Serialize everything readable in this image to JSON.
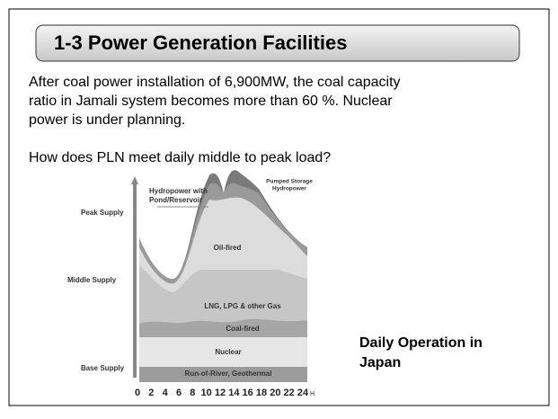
{
  "header": {
    "title": "1-3 Power Generation Facilities"
  },
  "paragraphs": [
    "After coal power installation of 6,900MW, the coal capacity",
    "ratio in Jamali system becomes more than 60 %. Nuclear",
    "power is under planning."
  ],
  "question": "How does PLN meet daily middle to peak load?",
  "figure": {
    "supply_levels": [
      "Peak Supply",
      "Middle Supply",
      "Base Supply"
    ],
    "layers": [
      "Oil-fired",
      "LNG, LPG & other Gas",
      "Coal-fired",
      "Nuclear",
      "Run-of-River, Geothermal"
    ],
    "annotations": {
      "hydro_pond": [
        "Hydropower with",
        "Pond/Reservoir"
      ],
      "pumped": [
        "Pumped Storage",
        "Hydropower"
      ]
    },
    "hours": [
      "0",
      "2",
      "4",
      "6",
      "8",
      "10",
      "12",
      "14",
      "16",
      "18",
      "20",
      "22",
      "24"
    ],
    "hour_unit": "H"
  },
  "caption": [
    "Daily Operation in",
    "Japan"
  ]
}
